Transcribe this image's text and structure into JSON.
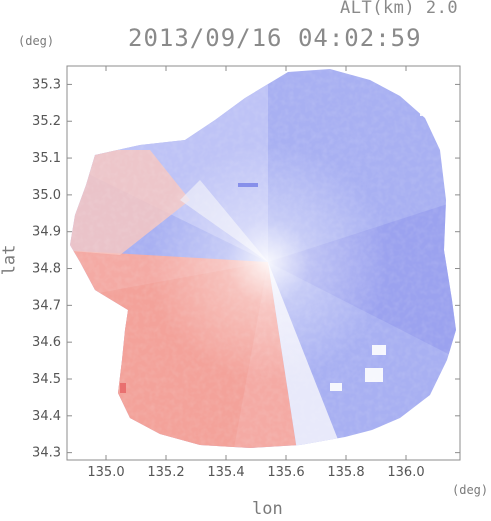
{
  "header": {
    "altitude_label": "ALT(km) 2.0",
    "datetime": "2013/09/16 04:02:59"
  },
  "chart_data": {
    "type": "heatmap",
    "title": "2013/09/16 04:02:59",
    "subtitle": "ALT(km) 2.0",
    "xlabel": "lon",
    "ylabel": "lat",
    "x_unit": "(deg)",
    "y_unit": "(deg)",
    "xlim": [
      134.87,
      136.18
    ],
    "ylim": [
      34.28,
      35.35
    ],
    "x_ticks": [
      135.0,
      135.2,
      135.4,
      135.6,
      135.8,
      136.0
    ],
    "y_ticks": [
      34.3,
      34.4,
      34.5,
      34.6,
      34.7,
      34.8,
      34.9,
      35.0,
      35.1,
      35.2,
      35.3
    ],
    "x_tick_labels": [
      "135.0",
      "135.2",
      "135.4",
      "135.6",
      "135.8",
      "136.0"
    ],
    "y_tick_labels": [
      "34.3",
      "34.4",
      "34.5",
      "34.6",
      "34.7",
      "34.8",
      "34.9",
      "35.0",
      "35.1",
      "35.2",
      "35.3"
    ],
    "radar_center": {
      "lon": 135.52,
      "lat": 34.82
    },
    "grid": false,
    "colors": {
      "positive": "#f4a09a",
      "negative": "#9aa4f0",
      "neutral": "#f6f4fb",
      "axis": "#888888"
    }
  }
}
